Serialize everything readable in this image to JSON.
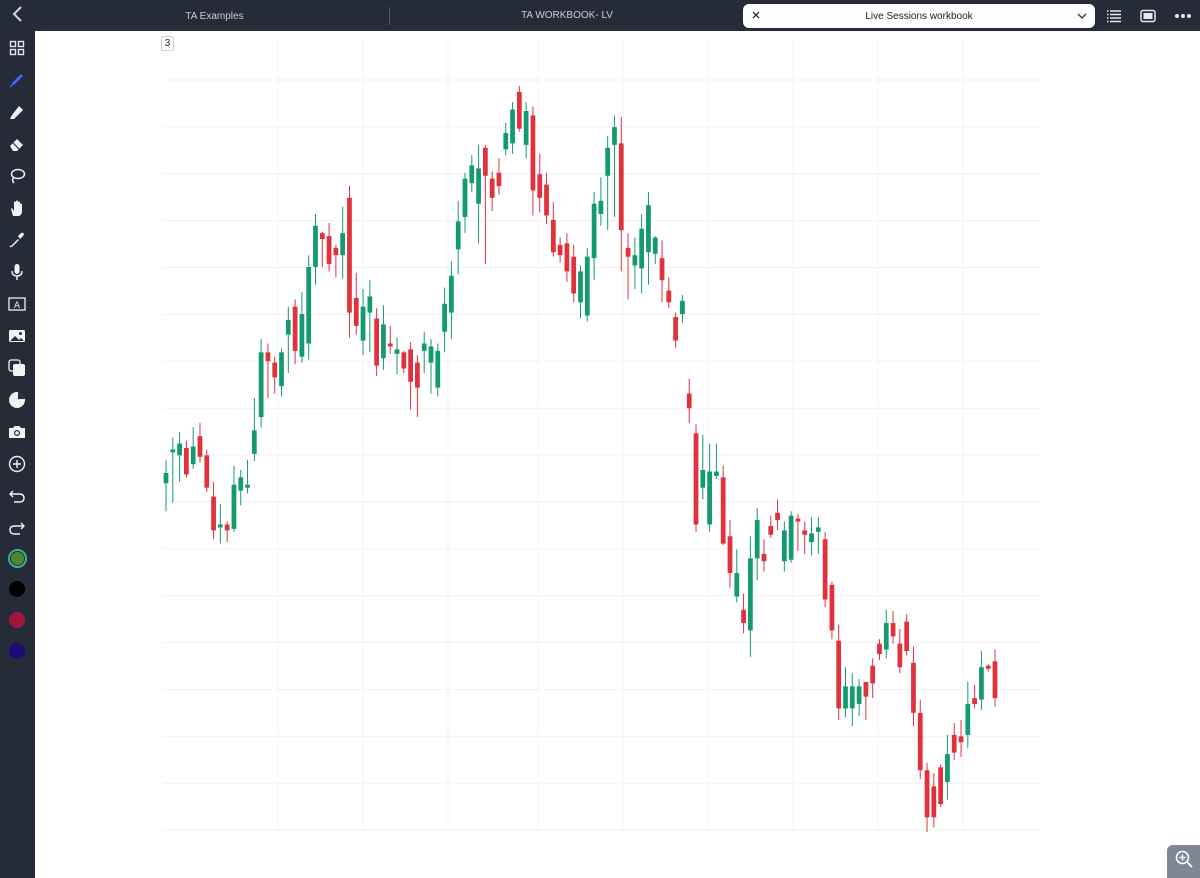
{
  "topbar": {
    "back_icon": "chevron-left-icon",
    "tabs": [
      {
        "label": "TA Examples"
      },
      {
        "label": "TA WORKBOOK- LV"
      },
      {
        "label": "Live Sessions workbook"
      }
    ],
    "icons": [
      "list-icon",
      "panel-icon",
      "more-icon"
    ]
  },
  "sidebar": {
    "tools": [
      "grid-icon",
      "pen-icon",
      "highlighter-icon",
      "eraser-icon",
      "lasso-icon",
      "hand-icon",
      "eyedropper-icon",
      "microphone-icon",
      "text-box-icon",
      "image-icon",
      "shapes-icon",
      "sticker-icon",
      "camera-icon",
      "add-icon",
      "undo-icon",
      "redo-icon"
    ],
    "colors": [
      "#4a8a2a",
      "#000000",
      "#a0163c",
      "#1e0a78"
    ]
  },
  "page": {
    "number": "3"
  },
  "chart_data": {
    "type": "candlestick",
    "up_color": "#139b6f",
    "down_color": "#e0313f",
    "grid": true,
    "candles": [
      [
        1,
        1,
        0,
        -1,
        -1
      ],
      [
        6.7,
        5.8,
        5.1,
        3.2,
        "up"
      ],
      [
        8.2,
        7.4,
        7.2,
        3.8,
        "up"
      ],
      [
        8.6,
        7.8,
        7.0,
        5.2,
        "up"
      ],
      [
        8.0,
        7.5,
        5.7,
        5.5,
        "down"
      ],
      [
        8.9,
        7.6,
        6.4,
        6.1,
        "up"
      ],
      [
        9.2,
        8.3,
        6.9,
        6.5,
        "down"
      ],
      [
        7.4,
        7.0,
        4.8,
        4.5,
        "down"
      ],
      [
        5.2,
        4.2,
        1.9,
        1.3,
        "down"
      ],
      [
        3.7,
        2.3,
        2.1,
        1.0,
        "up"
      ],
      [
        2.5,
        2.3,
        1.9,
        1.1,
        "down"
      ],
      [
        6.3,
        5.0,
        2.0,
        1.8,
        "up"
      ],
      [
        6.0,
        5.5,
        4.6,
        3.6,
        "up"
      ],
      [
        6.7,
        5.0,
        4.8,
        4.4,
        "up"
      ],
      [
        10.9,
        8.7,
        7.1,
        6.6,
        "up"
      ],
      [
        14.9,
        14.0,
        9.6,
        8.9,
        "up"
      ],
      [
        14.6,
        14.0,
        13.4,
        10.9,
        "down"
      ],
      [
        13.7,
        13.3,
        12.3,
        11.2,
        "down"
      ],
      [
        14.3,
        14.0,
        11.7,
        11.0,
        "up"
      ],
      [
        17.1,
        16.2,
        15.2,
        12.6,
        "up"
      ],
      [
        17.6,
        17.1,
        14.1,
        13.2,
        "down"
      ],
      [
        18.1,
        16.6,
        13.7,
        13.3,
        "up"
      ],
      [
        20.6,
        19.8,
        14.6,
        13.5,
        "up"
      ],
      [
        23.4,
        22.6,
        19.8,
        18.6,
        "up"
      ],
      [
        22.2,
        22.1,
        21.7,
        19.8,
        "down"
      ],
      [
        22.8,
        21.9,
        20.0,
        19.5,
        "down"
      ],
      [
        21.3,
        20.6,
        21.1,
        19.1,
        "down"
      ],
      [
        23.9,
        22.1,
        20.6,
        19.0,
        "up"
      ],
      [
        25.3,
        24.5,
        16.7,
        15.0,
        "down"
      ],
      [
        19.4,
        17.7,
        15.8,
        15.2,
        "down"
      ],
      [
        18.3,
        17.1,
        14.8,
        13.8,
        "up"
      ],
      [
        18.9,
        17.8,
        16.7,
        14.0,
        "up"
      ],
      [
        17.0,
        16.3,
        13.1,
        12.4,
        "down"
      ],
      [
        17.2,
        15.9,
        13.6,
        12.8,
        "up"
      ],
      [
        15.8,
        14.6,
        14.4,
        13.9,
        "down"
      ],
      [
        15.0,
        14.2,
        13.9,
        12.5,
        "up"
      ],
      [
        14.1,
        14.0,
        12.9,
        12.6,
        "down"
      ],
      [
        14.7,
        14.2,
        12.0,
        10.1,
        "down"
      ],
      [
        13.8,
        13.3,
        11.6,
        9.6,
        "down"
      ],
      [
        15.4,
        14.6,
        14.1,
        12.6,
        "up"
      ],
      [
        14.9,
        14.4,
        13.3,
        11.2,
        "up"
      ],
      [
        14.6,
        14.1,
        11.6,
        11.0,
        "up"
      ],
      [
        18.4,
        17.3,
        15.4,
        14.0,
        "up"
      ],
      [
        20.2,
        19.2,
        16.7,
        14.9,
        "up"
      ],
      [
        24.3,
        22.9,
        21.0,
        19.3,
        "up"
      ],
      [
        26.2,
        25.8,
        23.2,
        22.1,
        "up"
      ],
      [
        27.4,
        26.7,
        25.5,
        24.9,
        "up"
      ],
      [
        28.1,
        26.5,
        24.1,
        21.4,
        "up"
      ],
      [
        28.1,
        27.9,
        26.0,
        20.0,
        "down"
      ],
      [
        26.3,
        25.8,
        24.5,
        23.6,
        "down"
      ],
      [
        27.2,
        26.2,
        25.3,
        24.7,
        "down"
      ],
      [
        29.6,
        28.9,
        27.8,
        27.4,
        "up"
      ],
      [
        31.0,
        30.5,
        28.2,
        27.5,
        "up"
      ],
      [
        32.1,
        31.7,
        29.2,
        29.0,
        "down"
      ],
      [
        31.0,
        30.4,
        28.1,
        27.2,
        "up"
      ],
      [
        30.7,
        30.1,
        25.0,
        23.3,
        "down"
      ],
      [
        27.5,
        26.1,
        24.5,
        23.5,
        "down"
      ],
      [
        26.2,
        25.4,
        23.3,
        22.7,
        "down"
      ],
      [
        24.2,
        23.0,
        20.8,
        20.5,
        "down"
      ],
      [
        21.8,
        21.3,
        20.6,
        20.1,
        "down"
      ],
      [
        22.1,
        21.4,
        19.5,
        18.8,
        "down"
      ],
      [
        21.3,
        20.5,
        18.0,
        17.4,
        "down"
      ],
      [
        19.9,
        19.5,
        17.4,
        16.3,
        "up"
      ],
      [
        21.1,
        20.5,
        16.5,
        16.1,
        "up"
      ],
      [
        24.9,
        24.1,
        20.4,
        18.9,
        "up"
      ],
      [
        25.9,
        24.3,
        23.4,
        22.6,
        "up"
      ],
      [
        28.7,
        27.9,
        26.0,
        22.3,
        "up"
      ],
      [
        30.1,
        29.3,
        28.1,
        23.2,
        "up"
      ],
      [
        30.0,
        28.2,
        22.3,
        19.5,
        "down"
      ],
      [
        22.1,
        21.1,
        20.5,
        17.6,
        "down"
      ],
      [
        21.8,
        20.6,
        19.9,
        18.3,
        "up"
      ],
      [
        23.4,
        22.4,
        19.7,
        18.0,
        "up"
      ],
      [
        24.9,
        24.0,
        20.8,
        18.6,
        "up"
      ],
      [
        21.9,
        20.7,
        21.8,
        20.0,
        "up"
      ],
      [
        21.6,
        20.4,
        18.9,
        17.4,
        "down"
      ],
      [
        19.1,
        18.2,
        17.4,
        17.0,
        "down"
      ],
      [
        16.7,
        16.4,
        14.8,
        14.3,
        "down"
      ],
      [
        17.9,
        17.5,
        16.6,
        16.0,
        "up"
      ],
      [
        12.2,
        11.2,
        10.2,
        9.2,
        "down"
      ],
      [
        9.1,
        8.5,
        2.3,
        1.8,
        "down"
      ],
      [
        8.4,
        6.0,
        4.8,
        4.0,
        "up"
      ],
      [
        7.8,
        5.9,
        2.3,
        1.8,
        "up"
      ],
      [
        7.8,
        5.9,
        5.6,
        5.4,
        "up"
      ],
      [
        6.3,
        5.5,
        1.0,
        0.9,
        "down"
      ],
      [
        2.6,
        1.5,
        -1.0,
        -2.0,
        "down"
      ],
      [
        0.6,
        -1.0,
        -2.6,
        -3.0,
        "up"
      ],
      [
        -2.4,
        -3.5,
        -4.4,
        -5.1,
        "down"
      ],
      [
        1.5,
        0.0,
        -4.9,
        -6.7,
        "up"
      ],
      [
        3.4,
        2.6,
        0.0,
        -1.5,
        "up"
      ],
      [
        1.3,
        0.3,
        -0.2,
        -0.9,
        "down"
      ],
      [
        2.9,
        2.2,
        1.6,
        1.4,
        "down"
      ],
      [
        4.0,
        3.1,
        2.6,
        1.9,
        "down"
      ],
      [
        2.5,
        1.9,
        -0.2,
        -0.9,
        "up"
      ],
      [
        3.2,
        2.9,
        -0.1,
        -0.3,
        "up"
      ],
      [
        3.0,
        2.7,
        2.5,
        0.5,
        "down"
      ],
      [
        2.5,
        1.6,
        1.9,
        0.3,
        "down"
      ],
      [
        2.8,
        1.7,
        1.1,
        0.2,
        "up"
      ],
      [
        2.8,
        2.1,
        1.8,
        0.3,
        "up"
      ],
      [
        1.8,
        1.3,
        -2.8,
        -3.3,
        "down"
      ],
      [
        -1.6,
        -1.8,
        -4.9,
        -5.5,
        "down"
      ],
      [
        -4.5,
        -5.6,
        -10.2,
        -11.0,
        "down"
      ],
      [
        -7.4,
        -8.7,
        -10.2,
        -10.8,
        "up"
      ],
      [
        -7.8,
        -8.7,
        -10.2,
        -11.4,
        "up"
      ],
      [
        -8.2,
        -8.7,
        -9.9,
        -10.7,
        "up"
      ],
      [
        -8.7,
        -9.4,
        -8.4,
        -11.0,
        "down"
      ],
      [
        -6.8,
        -7.3,
        -8.5,
        -9.5,
        "down"
      ],
      [
        -5.5,
        -5.8,
        -6.5,
        -6.9,
        "down"
      ],
      [
        -3.5,
        -4.4,
        -6.2,
        -6.8,
        "up"
      ],
      [
        -3.6,
        -5.3,
        -4.4,
        -5.8,
        "down"
      ],
      [
        -4.8,
        -5.8,
        -7.4,
        -7.8,
        "down"
      ],
      [
        -3.8,
        -4.3,
        -6.3,
        -6.6,
        "down"
      ],
      [
        -6.0,
        -7.1,
        -10.5,
        -11.4,
        "down"
      ],
      [
        -9.6,
        -10.5,
        -14.4,
        -15.0,
        "down"
      ],
      [
        -13.9,
        -14.4,
        -17.6,
        -18.6,
        "down"
      ],
      [
        -14.6,
        -15.5,
        -17.6,
        -18.3,
        "down"
      ],
      [
        -14.0,
        -14.2,
        -16.7,
        -16.9,
        "down"
      ],
      [
        -12.0,
        -13.3,
        -15.2,
        -16.4,
        "up"
      ],
      [
        -11.2,
        -12.0,
        -13.2,
        -13.7,
        "down"
      ],
      [
        -11.0,
        -12.5,
        -12.1,
        -13.5,
        "down"
      ],
      [
        -8.4,
        -9.9,
        -12.0,
        -12.9,
        "up"
      ],
      [
        -8.6,
        -9.9,
        -9.5,
        -10.2,
        "down"
      ],
      [
        -6.3,
        -7.4,
        -9.6,
        -10.3,
        "up"
      ],
      [
        -7.2,
        -7.3,
        -7.5,
        -7.7,
        "down"
      ],
      [
        -6.2,
        -7.0,
        -9.5,
        -10.1,
        "down"
      ]
    ]
  }
}
